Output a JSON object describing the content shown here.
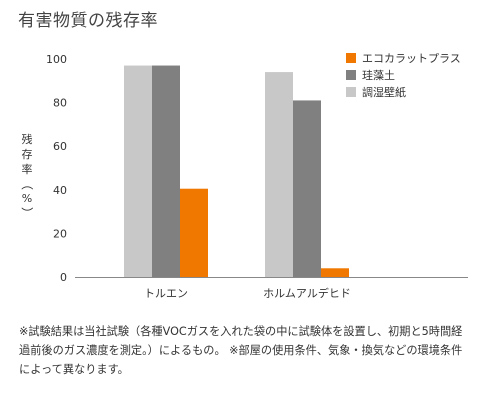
{
  "chart_data": {
    "type": "bar",
    "title": "有害物質の残存率",
    "ylabel_chars": [
      "残",
      "存",
      "率",
      "（",
      "%",
      "）"
    ],
    "ylim": [
      0,
      100
    ],
    "yticks": [
      0,
      20,
      40,
      60,
      80,
      100
    ],
    "categories": [
      "トルエン",
      "ホルムアルデヒド"
    ],
    "series": [
      {
        "name": "調湿壁紙",
        "color": "#c8c8c8",
        "values": [
          97,
          94
        ]
      },
      {
        "name": "珪藻土",
        "color": "#808080",
        "values": [
          97,
          81
        ]
      },
      {
        "name": "エコカラットプラス",
        "color": "#f07800",
        "values": [
          40.5,
          4
        ]
      }
    ],
    "legend": {
      "position": "top-right",
      "order": [
        "エコカラットプラス",
        "珪藻土",
        "調湿壁紙"
      ]
    },
    "grid": false
  },
  "footnote": "※試験結果は当社試験（各種VOCガスを入れた袋の中に試験体を設置し、初期と5時間経過前後のガス濃度を測定。）によるもの。 ※部屋の使用条件、気象・換気などの環境条件によって異なります。"
}
